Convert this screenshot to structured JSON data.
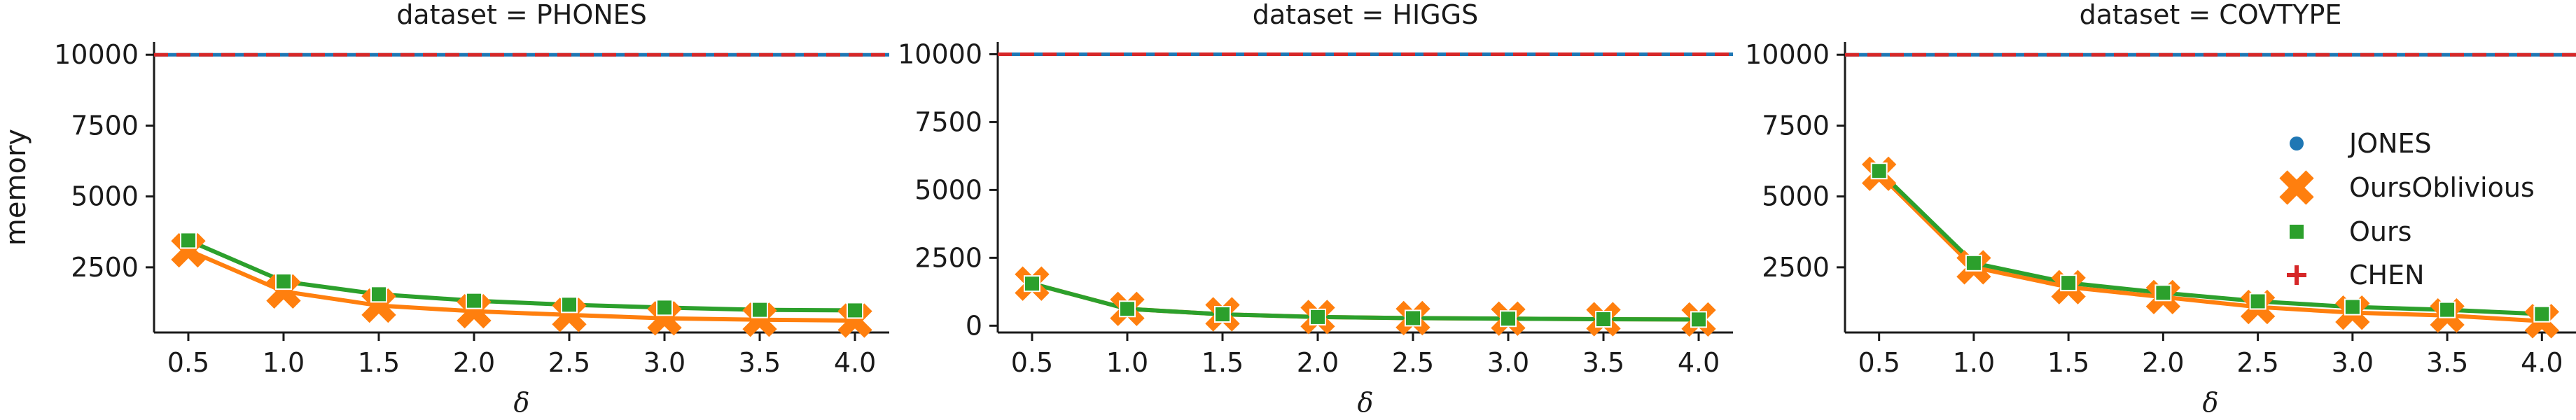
{
  "chart_data": [
    {
      "type": "line",
      "title": "dataset = PHONES",
      "xlabel": "δ",
      "ylabel": "memory",
      "x": [
        0.5,
        1.0,
        1.5,
        2.0,
        2.5,
        3.0,
        3.5,
        4.0
      ],
      "x_tick_labels": [
        "0.5",
        "1.0",
        "1.5",
        "2.0",
        "2.5",
        "3.0",
        "3.5",
        "4.0"
      ],
      "xlim": [
        0.32,
        4.18
      ],
      "ylim": [
        200,
        10450
      ],
      "y_ticks": [
        2500,
        5000,
        7500,
        10000
      ],
      "y_tick_labels": [
        "2500",
        "5000",
        "7500",
        "10000"
      ],
      "series": [
        {
          "name": "JONES",
          "style": "hline",
          "values": [
            10000,
            10000,
            10000,
            10000,
            10000,
            10000,
            10000,
            10000
          ]
        },
        {
          "name": "OursOblivious",
          "values": [
            3100,
            1650,
            1150,
            950,
            820,
            700,
            650,
            620
          ]
        },
        {
          "name": "Ours",
          "values": [
            3450,
            2000,
            1550,
            1320,
            1180,
            1080,
            1000,
            980
          ]
        },
        {
          "name": "CHEN",
          "style": "hline",
          "values": [
            10000,
            10000,
            10000,
            10000,
            10000,
            10000,
            10000,
            10000
          ]
        }
      ]
    },
    {
      "type": "line",
      "title": "dataset = HIGGS",
      "xlabel": "δ",
      "ylabel": "",
      "x": [
        0.5,
        1.0,
        1.5,
        2.0,
        2.5,
        3.0,
        3.5,
        4.0
      ],
      "x_tick_labels": [
        "0.5",
        "1.0",
        "1.5",
        "2.0",
        "2.5",
        "3.0",
        "3.5",
        "4.0"
      ],
      "xlim": [
        0.32,
        4.18
      ],
      "ylim": [
        -250,
        10450
      ],
      "y_ticks": [
        0,
        2500,
        5000,
        7500,
        10000
      ],
      "y_tick_labels": [
        "0",
        "2500",
        "5000",
        "7500",
        "10000"
      ],
      "series": [
        {
          "name": "JONES",
          "style": "hline",
          "values": [
            10000,
            10000,
            10000,
            10000,
            10000,
            10000,
            10000,
            10000
          ]
        },
        {
          "name": "OursOblivious",
          "values": [
            1550,
            620,
            420,
            320,
            280,
            260,
            240,
            230
          ]
        },
        {
          "name": "Ours",
          "values": [
            1550,
            620,
            420,
            320,
            280,
            260,
            240,
            230
          ]
        },
        {
          "name": "CHEN",
          "style": "hline",
          "values": [
            10000,
            10000,
            10000,
            10000,
            10000,
            10000,
            10000,
            10000
          ]
        }
      ]
    },
    {
      "type": "line",
      "title": "dataset = COVTYPE",
      "xlabel": "δ",
      "ylabel": "",
      "x": [
        0.5,
        1.0,
        1.5,
        2.0,
        2.5,
        3.0,
        3.5,
        4.0
      ],
      "x_tick_labels": [
        "0.5",
        "1.0",
        "1.5",
        "2.0",
        "2.5",
        "3.0",
        "3.5",
        "4.0"
      ],
      "xlim": [
        0.32,
        4.18
      ],
      "ylim": [
        200,
        10450
      ],
      "y_ticks": [
        2500,
        5000,
        7500,
        10000
      ],
      "y_tick_labels": [
        "2500",
        "5000",
        "7500",
        "10000"
      ],
      "legend": {
        "placement": "right",
        "entries": [
          "JONES",
          "OursOblivious",
          "Ours",
          "CHEN"
        ]
      },
      "series": [
        {
          "name": "JONES",
          "style": "hline",
          "values": [
            10000,
            10000,
            10000,
            10000,
            10000,
            10000,
            10000,
            10000
          ]
        },
        {
          "name": "OursOblivious",
          "values": [
            5800,
            2500,
            1800,
            1450,
            1100,
            900,
            800,
            600
          ]
        },
        {
          "name": "Ours",
          "values": [
            5900,
            2650,
            1950,
            1600,
            1300,
            1100,
            1000,
            850
          ]
        },
        {
          "name": "CHEN",
          "style": "hline",
          "values": [
            10000,
            10000,
            10000,
            10000,
            10000,
            10000,
            10000,
            10000
          ]
        }
      ]
    }
  ],
  "colors": {
    "JONES": "#1f77b4",
    "OursOblivious": "#ff7f0e",
    "Ours": "#2ca02c",
    "CHEN": "#d62728",
    "axis": "#1a1a1a"
  },
  "markers": {
    "JONES": "circle",
    "OursOblivious": "x-mark",
    "Ours": "square",
    "CHEN": "plus"
  }
}
